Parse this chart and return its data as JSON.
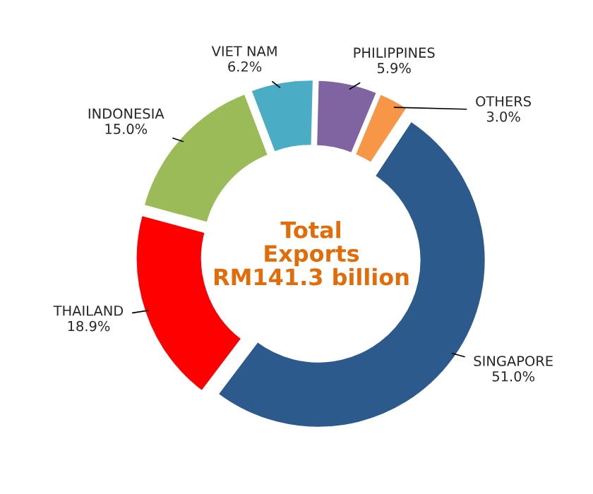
{
  "chart_data": {
    "type": "donut",
    "categories": [
      "SINGAPORE",
      "THAILAND",
      "INDONESIA",
      "VIET NAM",
      "PHILIPPINES",
      "OTHERS"
    ],
    "values": [
      51.0,
      18.9,
      15.0,
      6.2,
      5.9,
      3.0
    ],
    "value_labels": [
      "51.0%",
      "18.9%",
      "15.0%",
      "6.2%",
      "5.9%",
      "3.0%"
    ],
    "colors": [
      "#2c5a8c",
      "#ff0000",
      "#9bbb59",
      "#4bacc6",
      "#8064a2",
      "#f79646"
    ],
    "annotations": [
      "Total\nExports\nRM141.3 billion"
    ],
    "legend": false
  }
}
